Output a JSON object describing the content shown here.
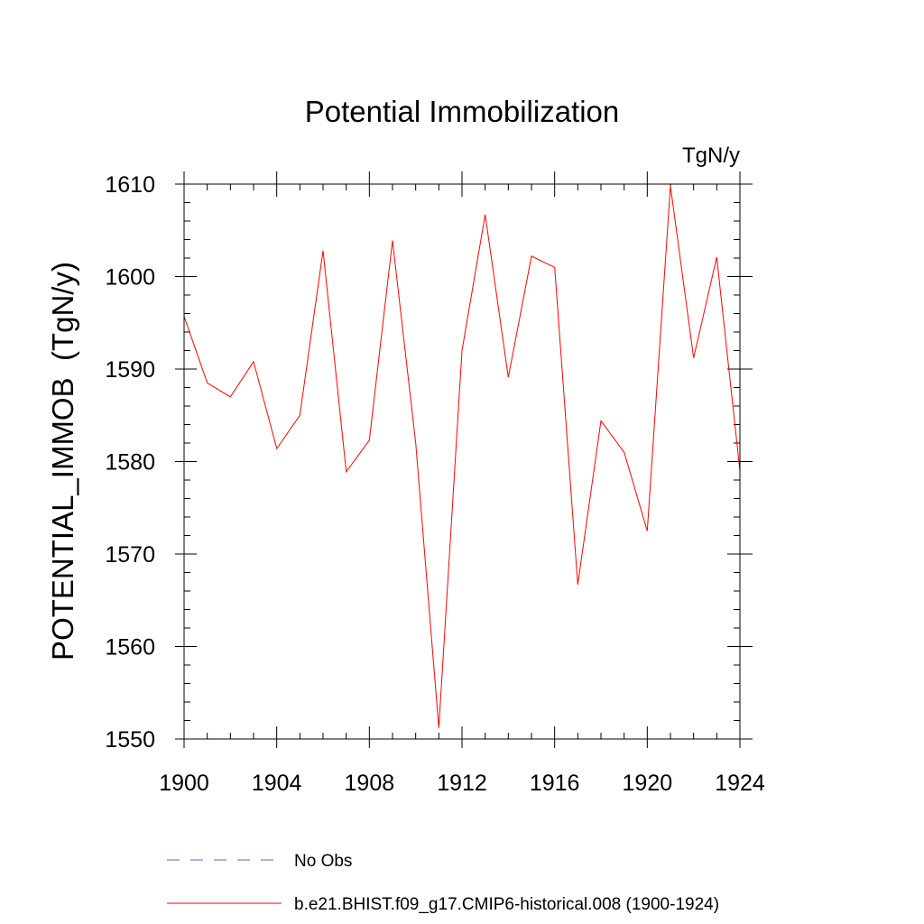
{
  "chart_data": {
    "type": "line",
    "title": "Potential Immobilization",
    "units": "TgN/y",
    "ylabel": "POTENTIAL_IMMOB  (TgN/y)",
    "xlabel": "",
    "xlim": [
      1900,
      1924
    ],
    "ylim": [
      1550,
      1610
    ],
    "xticks": [
      1900,
      1904,
      1908,
      1912,
      1916,
      1920,
      1924
    ],
    "yticks": [
      1550,
      1560,
      1570,
      1580,
      1590,
      1600,
      1610
    ],
    "x": [
      1900,
      1901,
      1902,
      1903,
      1904,
      1905,
      1906,
      1907,
      1908,
      1909,
      1910,
      1911,
      1912,
      1913,
      1914,
      1915,
      1916,
      1917,
      1918,
      1919,
      1920,
      1921,
      1922,
      1923,
      1924
    ],
    "series": [
      {
        "name": "b.e21.BHIST.f09_g17.CMIP6-historical.008 (1900-1924)",
        "color": "#ff0000",
        "values": [
          1595.7,
          1588.5,
          1587.0,
          1590.8,
          1581.4,
          1585.0,
          1602.8,
          1578.9,
          1582.3,
          1603.9,
          1582.0,
          1551.2,
          1592.0,
          1606.7,
          1589.1,
          1602.2,
          1601.0,
          1566.7,
          1584.4,
          1581.0,
          1572.5,
          1609.8,
          1591.2,
          1602.1,
          1579.0
        ]
      }
    ],
    "legend": [
      {
        "label": "No Obs",
        "color": "#6060c0",
        "style": "dashed"
      },
      {
        "label": "b.e21.BHIST.f09_g17.CMIP6-historical.008 (1900-1924)",
        "color": "#ff0000",
        "style": "solid"
      }
    ],
    "legend_position": "bottom"
  }
}
